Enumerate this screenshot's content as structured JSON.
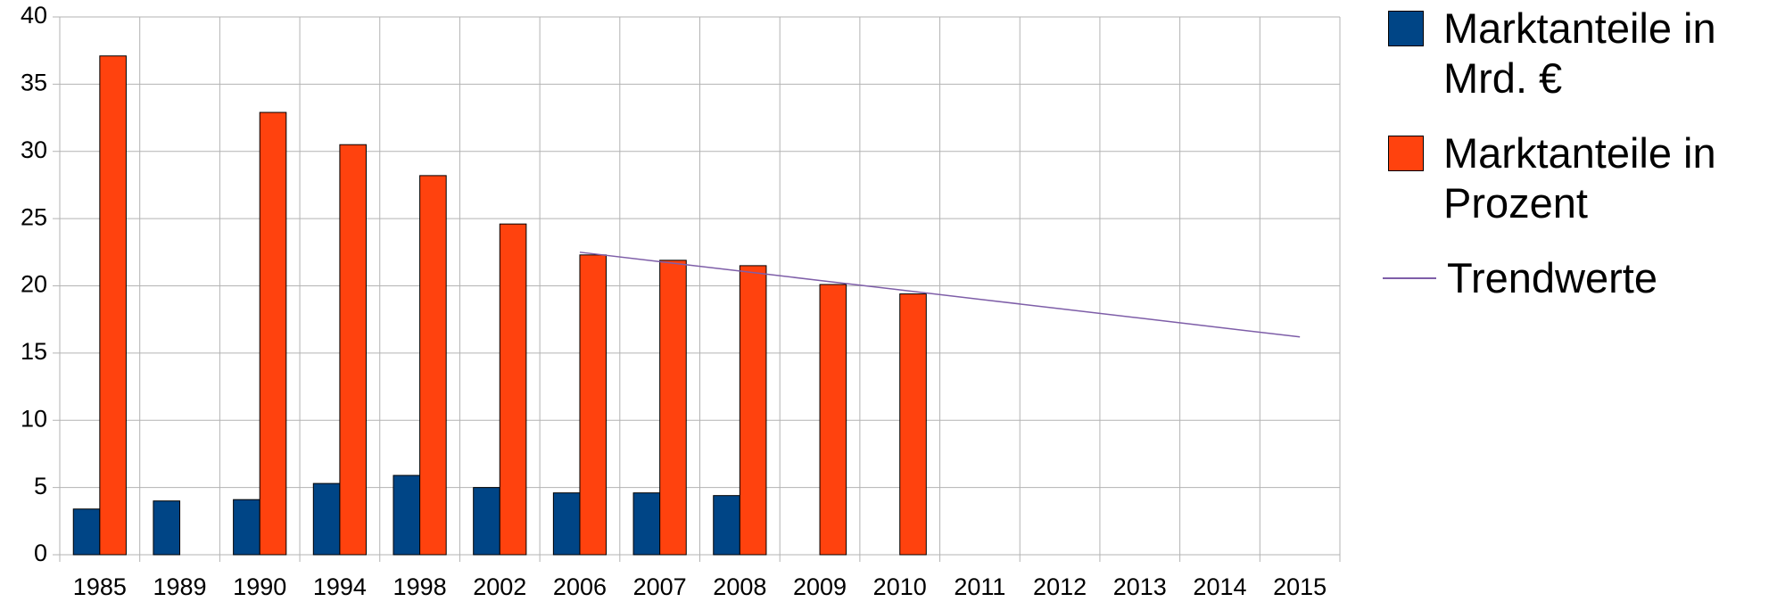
{
  "chart_data": {
    "type": "bar",
    "categories": [
      "1985",
      "1989",
      "1990",
      "1994",
      "1998",
      "2002",
      "2006",
      "2007",
      "2008",
      "2009",
      "2010",
      "2011",
      "2012",
      "2013",
      "2014",
      "2015"
    ],
    "series": [
      {
        "name": "Marktanteile in Mrd. €",
        "color": "#004586",
        "values": [
          3.4,
          4.0,
          4.1,
          5.3,
          5.9,
          5.0,
          4.6,
          4.6,
          4.4,
          null,
          null,
          null,
          null,
          null,
          null,
          null
        ]
      },
      {
        "name": "Marktanteile in Prozent",
        "color": "#ff420e",
        "values": [
          37.1,
          null,
          32.9,
          30.5,
          28.2,
          24.6,
          22.3,
          21.9,
          21.5,
          20.1,
          19.4,
          null,
          null,
          null,
          null,
          null
        ]
      },
      {
        "name": "Trendwerte",
        "color": "#7e5ea8",
        "type": "line",
        "values": [
          null,
          null,
          null,
          null,
          null,
          null,
          22.5,
          21.8,
          21.1,
          20.4,
          19.7,
          19.0,
          18.3,
          17.6,
          16.9,
          16.2
        ]
      }
    ],
    "ylim": [
      0,
      40
    ],
    "yticks": [
      0,
      5,
      10,
      15,
      20,
      25,
      30,
      35,
      40
    ],
    "grid": true,
    "legend": "right"
  }
}
